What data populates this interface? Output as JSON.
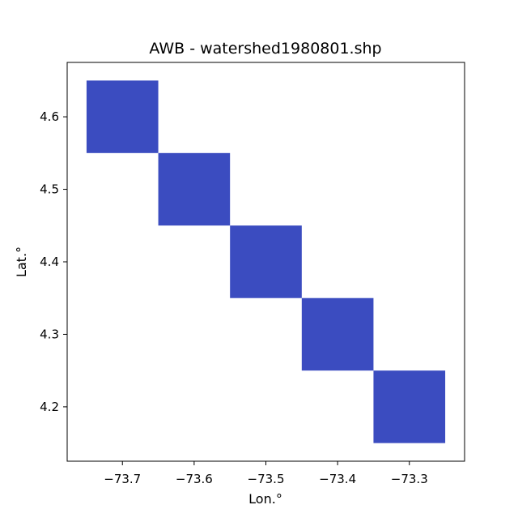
{
  "chart_data": {
    "type": "heatmap",
    "title": "AWB - watershed1980801.shp",
    "xlabel": "Lon.°",
    "ylabel": "Lat.°",
    "xlim": [
      -73.777,
      -73.223
    ],
    "ylim": [
      4.125,
      4.675
    ],
    "x_ticks": [
      -73.7,
      -73.6,
      -73.5,
      -73.4,
      -73.3
    ],
    "x_tick_labels": [
      "−73.7",
      "−73.6",
      "−73.5",
      "−73.4",
      "−73.3"
    ],
    "y_ticks": [
      4.2,
      4.3,
      4.4,
      4.5,
      4.6
    ],
    "y_tick_labels": [
      "4.2",
      "4.3",
      "4.4",
      "4.5",
      "4.6"
    ],
    "cell_size_deg": 0.1,
    "cells": [
      {
        "lon": -73.7,
        "lat": 4.6
      },
      {
        "lon": -73.6,
        "lat": 4.5
      },
      {
        "lon": -73.5,
        "lat": 4.4
      },
      {
        "lon": -73.4,
        "lat": 4.3
      },
      {
        "lon": -73.3,
        "lat": 4.2
      }
    ],
    "cell_color": "#3b4cc0",
    "grid": false,
    "legend": "none"
  }
}
